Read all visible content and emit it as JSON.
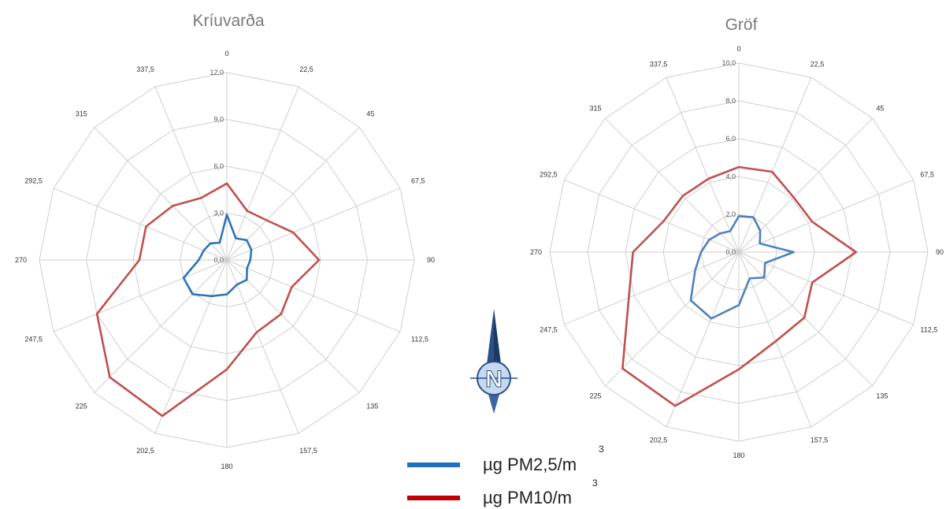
{
  "chart_data": [
    {
      "type": "radar",
      "title": "Kríuvarða",
      "directions": [
        "0",
        "22,5",
        "45",
        "67,5",
        "90",
        "112,5",
        "135",
        "157,5",
        "180",
        "202,5",
        "225",
        "247,5",
        "270",
        "292,5",
        "315",
        "337,5"
      ],
      "r_ticks": [
        "0,0",
        "3,0",
        "6,0",
        "9,0",
        "12,0"
      ],
      "r_max": 12,
      "series": [
        {
          "name": "µg PM2,5/m³",
          "color": "#2e75b6",
          "values": [
            2.9,
            1.5,
            1.8,
            1.7,
            1.5,
            1.4,
            1.8,
            1.7,
            2.2,
            2.5,
            3.1,
            3.0,
            1.8,
            1.6,
            1.5,
            1.2
          ]
        },
        {
          "name": "µg PM10/m³",
          "color": "#c0504d",
          "values": [
            4.9,
            3.4,
            3.6,
            4.6,
            5.9,
            4.5,
            4.9,
            5.0,
            7.0,
            10.8,
            10.6,
            9.0,
            5.6,
            5.6,
            4.9,
            4.3
          ]
        }
      ]
    },
    {
      "type": "radar",
      "title": "Gröf",
      "directions": [
        "0",
        "22,5",
        "45",
        "67,5",
        "90",
        "112,5",
        "135",
        "157,5",
        "180",
        "202,5",
        "225",
        "247,5",
        "270",
        "292,5",
        "315",
        "337,5"
      ],
      "r_ticks": [
        "0,0",
        "2,0",
        "4,0",
        "6,0",
        "8,0",
        "10,0"
      ],
      "r_max": 10,
      "series": [
        {
          "name": "µg PM2,5/m³",
          "color": "#4f81bd",
          "values": [
            1.9,
            2.0,
            1.6,
            1.2,
            2.9,
            1.5,
            1.9,
            1.5,
            2.8,
            3.8,
            3.6,
            2.5,
            2.0,
            1.7,
            1.4,
            1.2
          ]
        },
        {
          "name": "µg PM10/m³",
          "color": "#c0504d",
          "values": [
            4.5,
            4.6,
            4.1,
            4.2,
            6.2,
            4.2,
            4.9,
            5.1,
            6.2,
            8.8,
            8.7,
            6.3,
            5.6,
            4.3,
            4.2,
            4.2
          ]
        }
      ]
    }
  ],
  "legend": {
    "items": [
      {
        "label": "µg PM2,5/m",
        "sup": "3",
        "color": "#1f6fbf"
      },
      {
        "label": "µg PM10/m",
        "sup": "3",
        "color": "#c00000"
      }
    ]
  },
  "compass": {
    "letter": "N",
    "icon": "north-arrow-icon",
    "color": "#2b4f86"
  }
}
